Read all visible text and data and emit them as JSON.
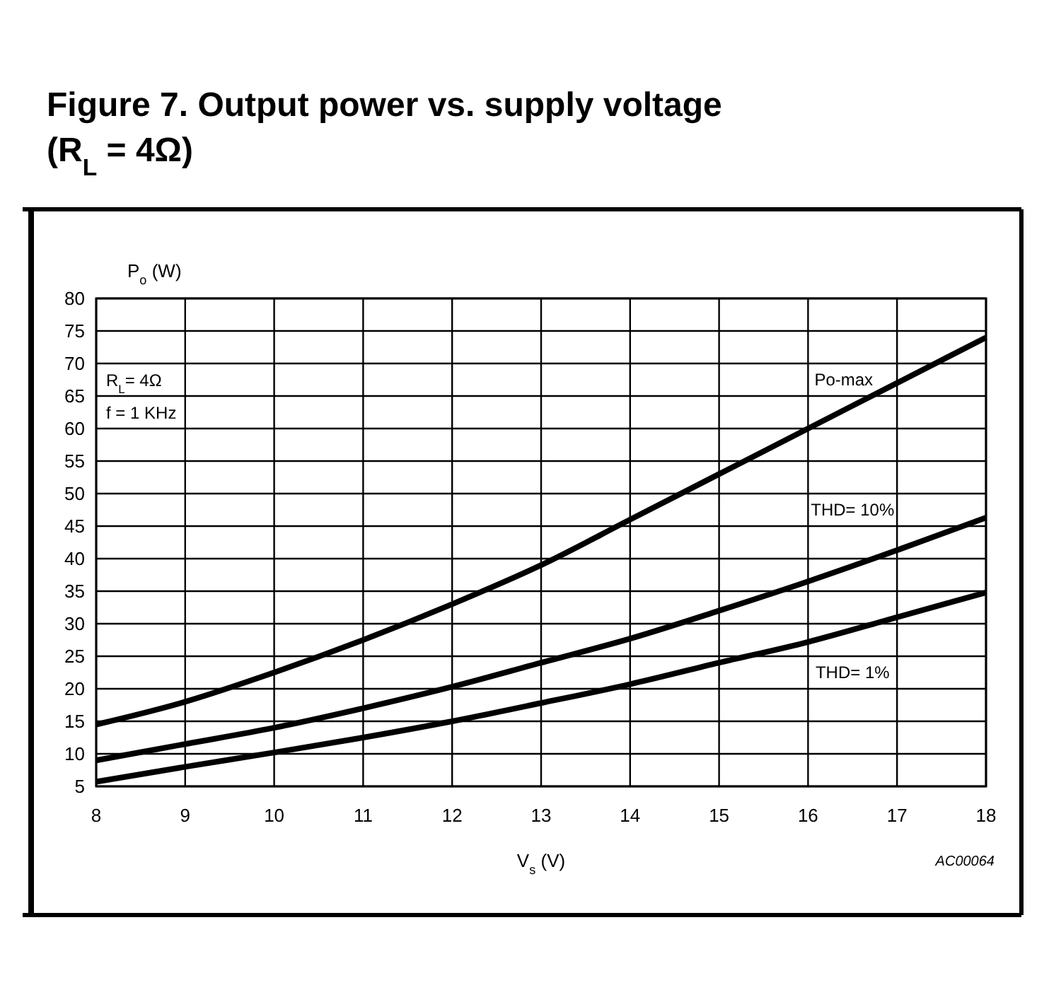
{
  "chart_data": {
    "type": "line",
    "title": "Figure 7. Output power vs. supply voltage (R$_{L}$ = 4Ω)",
    "xlabel": "V$_{s}$ (V)",
    "ylabel": "P$_{o}$ (W)",
    "x": [
      8,
      9,
      10,
      11,
      12,
      13,
      14,
      15,
      16,
      17,
      18
    ],
    "series": [
      {
        "name": "Po-max",
        "color": "#000000",
        "values": [
          14.5,
          18,
          22.5,
          27.5,
          33,
          39,
          46,
          53,
          60,
          67,
          74
        ]
      },
      {
        "name": "THD= 10%",
        "color": "#000000",
        "values": [
          9,
          11.5,
          14,
          17,
          20.3,
          24,
          27.7,
          32,
          36.5,
          41.3,
          46.3
        ]
      },
      {
        "name": "THD= 1%",
        "color": "#000000",
        "values": [
          5.7,
          8,
          10.2,
          12.5,
          15,
          17.8,
          20.7,
          24,
          27.2,
          31,
          34.8
        ]
      }
    ],
    "xlim": [
      8,
      18
    ],
    "xticks": [
      8,
      9,
      10,
      11,
      12,
      13,
      14,
      15,
      16,
      17,
      18
    ],
    "ylim": [
      5,
      80
    ],
    "yticks": [
      5,
      10,
      15,
      20,
      25,
      30,
      35,
      40,
      45,
      50,
      55,
      60,
      65,
      70,
      75,
      80
    ],
    "grid": true,
    "marker": "none",
    "line_style": "solid",
    "annotations": [
      "R$_{L}$= 4Ω",
      "f = 1 KHz",
      "AC00064"
    ]
  }
}
